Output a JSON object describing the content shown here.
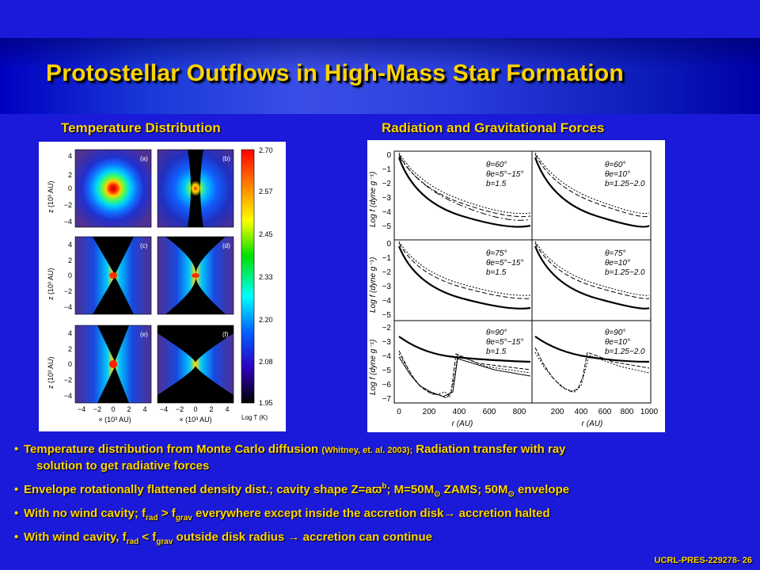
{
  "slide": {
    "title": "Protostellar Outflows in High-Mass Star Formation",
    "footer": "UCRL-PRES-229278- 26"
  },
  "figures": {
    "left_caption": "Temperature Distribution",
    "right_caption": "Radiation and Gravitational Forces",
    "temperature": {
      "panel_labels": [
        "(a)",
        "(b)",
        "(c)",
        "(d)",
        "(e)",
        "(f)"
      ],
      "y_axis_label": "z (10³ AU)",
      "x_axis_label": "× (10³ AU)",
      "y_ticks": [
        "4",
        "2",
        "0",
        "−2",
        "−4"
      ],
      "x_ticks": [
        "−4",
        "−2",
        "0",
        "2",
        "4"
      ],
      "colorbar_ticks": [
        "2.70",
        "2.57",
        "2.45",
        "2.33",
        "2.20",
        "2.08",
        "1.95"
      ],
      "colorbar_label": "Log T (K)"
    },
    "forces": {
      "y_axis_label": "Log f (dyne g⁻¹)",
      "x_axis_label": "r (AU)",
      "x_ticks": [
        "0",
        "200",
        "400",
        "600",
        "800",
        "200",
        "400",
        "600",
        "800",
        "1000"
      ],
      "panel_y_ticks": [
        [
          "0",
          "−1",
          "−2",
          "−3",
          "−4",
          "−5"
        ],
        [
          "0",
          "−1",
          "−2",
          "−3",
          "−4",
          "−5"
        ],
        [
          "−2",
          "−3",
          "−4",
          "−5",
          "−6",
          "−7"
        ]
      ],
      "legends": [
        [
          "θ=60°",
          "θe=5°−15°",
          "b=1.5"
        ],
        [
          "θ=60°",
          "θe=10°",
          "b=1.25−2.0"
        ],
        [
          "θ=75°",
          "θe=5°−15°",
          "b=1.5"
        ],
        [
          "θ=75°",
          "θe=10°",
          "b=1.25−2.0"
        ],
        [
          "θ=90°",
          "θe=5°−15°",
          "b=1.5"
        ],
        [
          "θ=90°",
          "θe=10°",
          "b=1.25−2.0"
        ]
      ]
    }
  },
  "bullets": {
    "b1_main": "Temperature distribution from Monte Carlo diffusion ",
    "b1_ref": "(Whitney, et. al. 2003);",
    "b1_tail": " Radiation transfer with ray",
    "b1_cont": "solution to get radiative forces",
    "b2_a": "Envelope rotationally flattened density dist.; cavity shape Z=a",
    "b2_varpi": "ϖ",
    "b2_sup": "b",
    "b2_b": "; M=50M",
    "b2_sun1": "⊙",
    "b2_c": " ZAMS; 50M",
    "b2_sun2": "⊙",
    "b2_d": " envelope",
    "b3_a": "With no wind cavity; f",
    "b3_sub1": "rad",
    "b3_b": " > f",
    "b3_sub2": "grav",
    "b3_c": " everywhere except inside the accretion disk",
    "b3_arrow": "→",
    "b3_d": " accretion halted",
    "b4_a": "With wind cavity, f",
    "b4_sub1": "rad",
    "b4_b": " < f",
    "b4_sub2": "grav",
    "b4_c": " outside disk radius ",
    "b4_arrow": "→",
    "b4_d": " accretion can continue"
  },
  "colors": {
    "background": "#1a1ad8",
    "title_text": "#ffd400",
    "body_text": "#ffd400"
  }
}
